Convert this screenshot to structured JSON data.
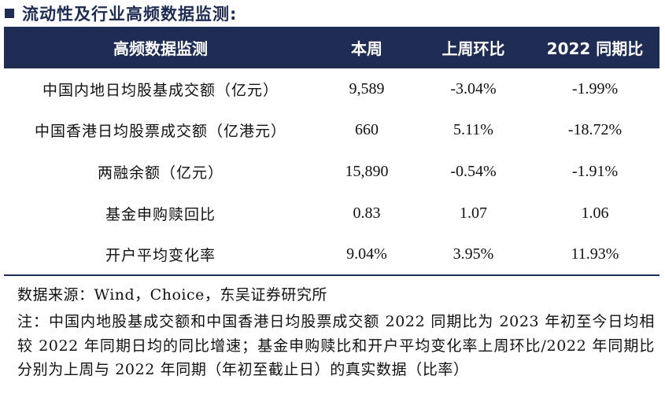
{
  "section_title": "流动性及行业高频数据监测:",
  "table": {
    "headers": [
      "高频数据监测",
      "本周",
      "上周环比",
      "2022 同期比"
    ],
    "rows": [
      {
        "label": "中国内地日均股基成交额（亿元）",
        "this_week": "9,589",
        "wow": "-3.04%",
        "yoy_2022": "-1.99%"
      },
      {
        "label": "中国香港日均股票成交额（亿港元）",
        "this_week": "660",
        "wow": "5.11%",
        "yoy_2022": "-18.72%"
      },
      {
        "label": "两融余额（亿元）",
        "this_week": "15,890",
        "wow": "-0.54%",
        "yoy_2022": "-1.91%"
      },
      {
        "label": "基金申购赎回比",
        "this_week": "0.83",
        "wow": "1.07",
        "yoy_2022": "1.06"
      },
      {
        "label": "开户平均变化率",
        "this_week": "9.04%",
        "wow": "3.95%",
        "yoy_2022": "11.93%"
      }
    ]
  },
  "source": "数据来源：Wind，Choice，东吴证券研究所",
  "note": "注：中国内地股基成交额和中国香港日均股票成交额 2022 同期比为 2023 年初至今日均相较 2022 年同期日均的同比增速；基金申购赎比和开户平均变化率上周环比/2022 年同期比分别为上周与 2022 年同期（年初至截止日）的真实数据（比率）"
}
